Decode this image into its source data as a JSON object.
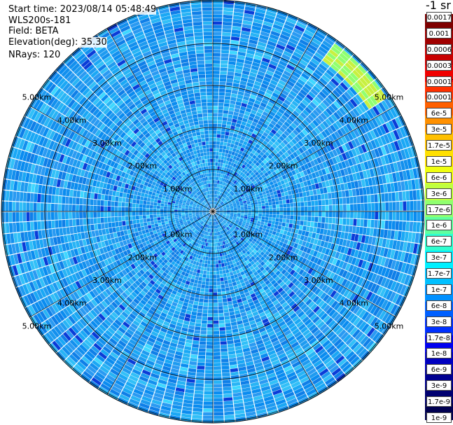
{
  "header": {
    "start_time": "Start time: 2023/08/14 05:48:49",
    "instrument": "WLS200s-181",
    "field": "Field: BETA",
    "elevation": "Elevation(deg): 35.30",
    "nrays": "NRays: 120"
  },
  "colorbar": {
    "unit_label": "-1 sr",
    "ticks": [
      "0.0017",
      "0.001",
      "0.0006",
      "0.0003",
      "0.00017",
      "0.0001",
      "6e-5",
      "3e-5",
      "1.7e-5",
      "1e-5",
      "6e-6",
      "3e-6",
      "1.7e-6",
      "1e-6",
      "6e-7",
      "3e-7",
      "1.7e-7",
      "1e-7",
      "6e-8",
      "3e-8",
      "1.7e-8",
      "1e-8",
      "6e-9",
      "3e-9",
      "1.7e-9",
      "1e-9"
    ],
    "colors": [
      "#7f0000",
      "#a00000",
      "#c80000",
      "#f00000",
      "#ff3000",
      "#ff6000",
      "#ff9000",
      "#ffc000",
      "#ffe000",
      "#f0ff10",
      "#c0ff40",
      "#90ff70",
      "#60ff9f",
      "#30ffd0",
      "#00f0ff",
      "#00c0ff",
      "#0090ff",
      "#0060ff",
      "#0030ff",
      "#0000f0",
      "#0000c0",
      "#000090",
      "#000070",
      "#000050"
    ]
  },
  "chart_data": {
    "type": "heatmap",
    "projection": "polar-ppi",
    "field": "BETA",
    "n_rays": 120,
    "range_rings_km": [
      1,
      2,
      3,
      4,
      5
    ],
    "ring_labels": [
      "1.00km",
      "2.00km",
      "3.00km",
      "4.00km",
      "5.00km"
    ],
    "background_level": "1e-8 to 1e-7",
    "enhanced_arc": {
      "azimuth_deg": [
        35,
        55
      ],
      "range_km": [
        4.4,
        4.9
      ],
      "level": "3e-6 to 1e-5"
    },
    "grid": true
  }
}
